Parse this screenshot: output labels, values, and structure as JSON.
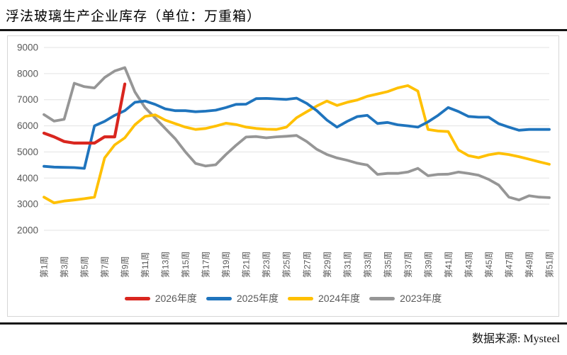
{
  "title": "浮法玻璃生产企业库存（单位：万重箱）",
  "source": "数据来源: Mysteel",
  "colors": {
    "red": "#d9261f",
    "blue": "#1f74bd",
    "yellow": "#ffc000",
    "gray": "#969696",
    "gridline": "#e3e3e3",
    "axis_text": "#595959",
    "panel_border": "#d6d6d6",
    "rule": "#141414"
  },
  "chart_data": {
    "type": "line",
    "title": "浮法玻璃生产企业库存（单位：万重箱）",
    "xlabel": "",
    "ylabel": "",
    "ylim": [
      2000,
      9000
    ],
    "y_ticks": [
      9000,
      8000,
      7000,
      6000,
      5000,
      4000,
      3000,
      2000
    ],
    "x_tick_labels": [
      "第1周",
      "第3周",
      "第5周",
      "第7周",
      "第9周",
      "第11周",
      "第13周",
      "第15周",
      "第17周",
      "第19周",
      "第21周",
      "第23周",
      "第25周",
      "第27周",
      "第29周",
      "第31周",
      "第33周",
      "第35周",
      "第37周",
      "第39周",
      "第41周",
      "第43周",
      "第45周",
      "第47周",
      "第49周",
      "第51周"
    ],
    "weeks_total": 51,
    "grid": "horizontal",
    "legend_position": "bottom",
    "series": [
      {
        "name": "2026年度",
        "color": "#d9261f",
        "stroke_width": 4.2,
        "values": [
          5720,
          5580,
          5400,
          5340,
          5340,
          5340,
          5580,
          5580,
          7600
        ]
      },
      {
        "name": "2025年度",
        "color": "#1f74bd",
        "stroke_width": 3.8,
        "values": [
          4450,
          4420,
          4410,
          4400,
          4370,
          6000,
          6170,
          6400,
          6580,
          6900,
          6950,
          6820,
          6650,
          6580,
          6580,
          6540,
          6560,
          6600,
          6700,
          6820,
          6830,
          7040,
          7050,
          7030,
          7010,
          7060,
          6860,
          6580,
          6220,
          5950,
          6170,
          6355,
          6400,
          6090,
          6130,
          6040,
          6000,
          5950,
          6150,
          6400,
          6700,
          6550,
          6360,
          6330,
          6330,
          6080,
          5950,
          5830,
          5860,
          5860,
          5860
        ]
      },
      {
        "name": "2024年度",
        "color": "#ffc000",
        "stroke_width": 3.8,
        "values": [
          3270,
          3050,
          3120,
          3160,
          3210,
          3270,
          4770,
          5270,
          5540,
          6040,
          6360,
          6420,
          6220,
          6080,
          5950,
          5860,
          5900,
          5990,
          6100,
          6050,
          5950,
          5900,
          5870,
          5860,
          5950,
          6310,
          6540,
          6760,
          6950,
          6780,
          6900,
          6990,
          7130,
          7220,
          7310,
          7450,
          7540,
          7330,
          5860,
          5800,
          5780,
          5080,
          4860,
          4780,
          4890,
          4950,
          4900,
          4820,
          4720,
          4620,
          4530
        ]
      },
      {
        "name": "2023年度",
        "color": "#969696",
        "stroke_width": 3.8,
        "values": [
          6430,
          6180,
          6250,
          7630,
          7500,
          7450,
          7850,
          8100,
          8230,
          7300,
          6700,
          6300,
          5900,
          5500,
          5000,
          4560,
          4460,
          4510,
          4900,
          5250,
          5570,
          5590,
          5540,
          5580,
          5600,
          5630,
          5400,
          5100,
          4900,
          4770,
          4680,
          4570,
          4500,
          4140,
          4180,
          4180,
          4230,
          4370,
          4090,
          4140,
          4150,
          4230,
          4180,
          4110,
          3950,
          3730,
          3270,
          3160,
          3320,
          3270,
          3250
        ]
      }
    ]
  }
}
